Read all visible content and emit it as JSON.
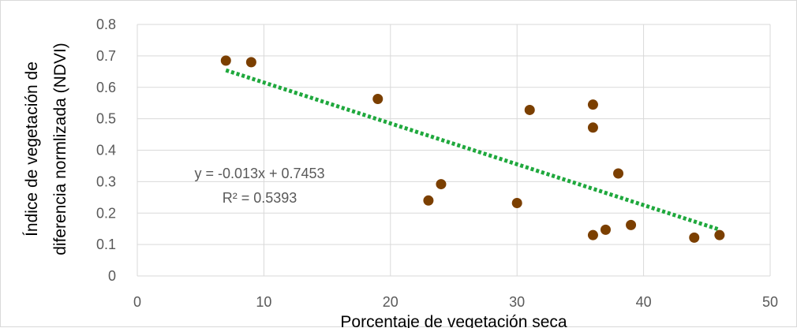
{
  "chart_data": {
    "type": "scatter",
    "xlabel": "Porcentaje de vegetación seca",
    "ylabel_lines": [
      "Índice de vegetación de",
      "diferencia normlizada (NDVI)"
    ],
    "xlim": [
      0,
      50
    ],
    "ylim": [
      0,
      0.8
    ],
    "x_ticks": [
      0,
      10,
      20,
      30,
      40,
      50
    ],
    "y_ticks": [
      0,
      0.1,
      0.2,
      0.3,
      0.4,
      0.5,
      0.6,
      0.7,
      0.8
    ],
    "x_tick_labels": [
      "0",
      "10",
      "20",
      "30",
      "40",
      "50"
    ],
    "y_tick_labels": [
      "0",
      "0.1",
      "0.2",
      "0.3",
      "0.4",
      "0.5",
      "0.6",
      "0.7",
      "0.8"
    ],
    "grid": true,
    "points": [
      {
        "x": 7,
        "y": 0.685
      },
      {
        "x": 9,
        "y": 0.68
      },
      {
        "x": 19,
        "y": 0.563
      },
      {
        "x": 23,
        "y": 0.24
      },
      {
        "x": 24,
        "y": 0.292
      },
      {
        "x": 30,
        "y": 0.232
      },
      {
        "x": 31,
        "y": 0.528
      },
      {
        "x": 36,
        "y": 0.545
      },
      {
        "x": 36,
        "y": 0.472
      },
      {
        "x": 36,
        "y": 0.13
      },
      {
        "x": 37,
        "y": 0.147
      },
      {
        "x": 38,
        "y": 0.326
      },
      {
        "x": 39,
        "y": 0.162
      },
      {
        "x": 44,
        "y": 0.122
      },
      {
        "x": 46,
        "y": 0.13
      }
    ],
    "trendline": {
      "slope": -0.013,
      "intercept": 0.7453,
      "x_range": [
        7,
        46
      ],
      "equation_text": "y = -0.013x + 0.7453",
      "r2_text": "R² = 0.5393"
    },
    "colors": {
      "marker": "#7b3f00",
      "trendline": "#1fa83d",
      "grid": "#d9d9d9",
      "tick_text": "#595959"
    }
  }
}
